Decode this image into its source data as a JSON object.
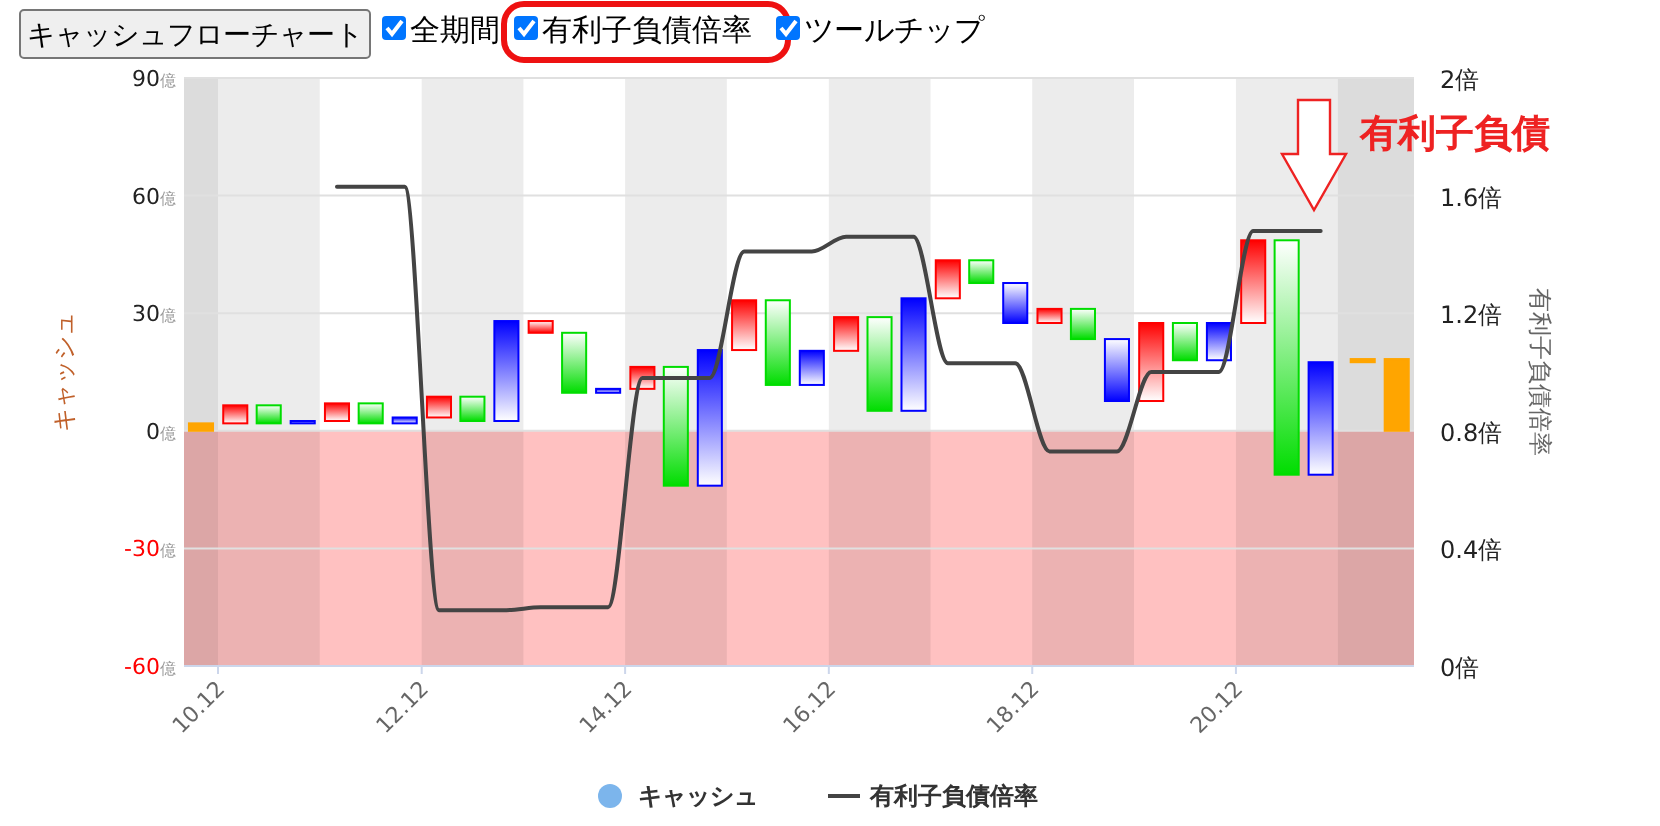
{
  "chart_data": {
    "type": "bar",
    "xlim": [
      "2010-08",
      "2022-09"
    ],
    "xticks": [
      {
        "value": "2010-12",
        "label": "10.12"
      },
      {
        "value": "2012-12",
        "label": "12.12"
      },
      {
        "value": "2014-12",
        "label": "14.12"
      },
      {
        "value": "2016-12",
        "label": "16.12"
      },
      {
        "value": "2018-12",
        "label": "18.12"
      },
      {
        "value": "2020-12",
        "label": "20.12"
      }
    ],
    "ylim": [
      -60,
      90
    ],
    "yticks": [
      {
        "value": -60,
        "label": "-60億"
      },
      {
        "value": -30,
        "label": "-30億"
      },
      {
        "value": 0,
        "label": "0億"
      },
      {
        "value": 30,
        "label": "30億"
      },
      {
        "value": 60,
        "label": "60億"
      },
      {
        "value": 90,
        "label": "90億"
      }
    ],
    "y2lim": [
      0,
      2
    ],
    "y2ticks": [
      {
        "value": 0,
        "label": "0倍"
      },
      {
        "value": 0.4,
        "label": "0.4倍"
      },
      {
        "value": 0.8,
        "label": "0.8倍"
      },
      {
        "value": 1.2,
        "label": "1.2倍"
      },
      {
        "value": 1.6,
        "label": "1.6倍"
      },
      {
        "value": 2,
        "label": "2倍"
      }
    ],
    "ylabel": "キャッシュ",
    "y2label": "有利子負債倍率",
    "grid": "y",
    "legend": "bottom",
    "annotations": [
      "キャッシュフローチャート",
      "全期間",
      "有利子負債倍率",
      "ツールチップ",
      "有利子負債"
    ],
    "bands": [
      {
        "axis": "y",
        "from": -60,
        "to": 0,
        "color": "#ffb6b6"
      },
      {
        "axis": "x",
        "from": "2010-08",
        "to": "2010-12",
        "color": "#dcdcdc"
      },
      {
        "axis": "x",
        "from": "2010-12",
        "to": "2011-12",
        "color": "#ececec"
      },
      {
        "axis": "x",
        "from": "2012-12",
        "to": "2013-12",
        "color": "#ececec"
      },
      {
        "axis": "x",
        "from": "2014-12",
        "to": "2015-12",
        "color": "#ececec"
      },
      {
        "axis": "x",
        "from": "2016-12",
        "to": "2017-12",
        "color": "#ececec"
      },
      {
        "axis": "x",
        "from": "2018-12",
        "to": "2019-12",
        "color": "#ececec"
      },
      {
        "axis": "x",
        "from": "2020-12",
        "to": "2021-12",
        "color": "#ececec"
      },
      {
        "axis": "x",
        "from": "2021-12",
        "to": "2022-09",
        "color": "#dcdcdc"
      }
    ],
    "series": [
      {
        "name": "キャッシュ",
        "color": "#7cb5ec",
        "x": [
          "2010-10",
          "2011-02",
          "2011-06",
          "2011-10",
          "2012-02",
          "2012-06",
          "2012-10",
          "2013-02",
          "2013-06",
          "2013-10",
          "2014-02",
          "2014-06",
          "2014-10",
          "2015-02",
          "2015-06",
          "2015-10",
          "2016-02",
          "2016-06",
          "2016-10",
          "2017-02",
          "2017-06",
          "2017-10",
          "2018-02",
          "2018-06",
          "2018-10",
          "2019-02",
          "2019-06",
          "2019-10",
          "2020-02",
          "2020-06",
          "2020-10",
          "2021-02",
          "2021-06",
          "2021-10",
          "2022-03",
          "2022-07"
        ],
        "base": [
          0,
          1.9,
          6.5,
          1.9,
          2.5,
          7.0,
          1.9,
          3.4,
          8.7,
          2.5,
          28.0,
          25.0,
          9.7,
          10.7,
          16.3,
          -14.0,
          20.6,
          33.3,
          11.7,
          20.4,
          29.0,
          5.1,
          33.8,
          43.5,
          37.7,
          27.5,
          31.1,
          23.4,
          7.6,
          27.5,
          18.0,
          27.5,
          48.6,
          -11.2,
          17.5,
          0
        ],
        "values": [
          1.9,
          4.6,
          -4.6,
          0.6,
          4.5,
          -5.1,
          1.5,
          5.3,
          -6.2,
          25.5,
          -3.0,
          -15.3,
          1.0,
          5.6,
          -30.3,
          34.6,
          12.7,
          -21.6,
          8.7,
          8.6,
          -23.9,
          28.7,
          9.7,
          -5.8,
          -10.2,
          3.6,
          -7.7,
          -15.8,
          19.9,
          -9.5,
          9.5,
          21.1,
          -59.8,
          28.7,
          0.8,
          18.3
        ],
        "colors": [
          "#ffa500",
          "#ff0000",
          "#00dd00",
          "#0000ff",
          "#ff0000",
          "#00dd00",
          "#0000ff",
          "#ff0000",
          "#00dd00",
          "#0000ff",
          "#ff0000",
          "#00dd00",
          "#0000ff",
          "#ff0000",
          "#00dd00",
          "#0000ff",
          "#ff0000",
          "#00dd00",
          "#0000ff",
          "#ff0000",
          "#00dd00",
          "#0000ff",
          "#ff0000",
          "#00dd00",
          "#0000ff",
          "#ff0000",
          "#00dd00",
          "#0000ff",
          "#ff0000",
          "#00dd00",
          "#0000ff",
          "#ff0000",
          "#00dd00",
          "#0000ff",
          "#ffa500",
          "#ffa500"
        ]
      },
      {
        "name": "有利子負債倍率",
        "type": "line",
        "axis": "y2",
        "color": "#444444",
        "x": [
          "2012-02",
          "2012-06",
          "2012-10",
          "2013-02",
          "2013-06",
          "2013-10",
          "2014-02",
          "2014-06",
          "2014-10",
          "2015-02",
          "2015-06",
          "2015-10",
          "2016-02",
          "2016-06",
          "2016-10",
          "2017-02",
          "2017-06",
          "2017-10",
          "2018-02",
          "2018-06",
          "2018-10",
          "2019-02",
          "2019-06",
          "2019-10",
          "2020-02",
          "2020-06",
          "2020-10",
          "2021-02",
          "2021-06",
          "2021-10"
        ],
        "values": [
          1.63,
          1.63,
          1.63,
          0.19,
          0.19,
          0.19,
          0.2,
          0.2,
          0.2,
          0.98,
          0.98,
          0.98,
          1.41,
          1.41,
          1.41,
          1.46,
          1.46,
          1.46,
          1.03,
          1.03,
          1.03,
          0.73,
          0.73,
          0.73,
          1.0,
          1.0,
          1.0,
          1.48,
          1.48,
          1.48
        ]
      }
    ]
  }
}
